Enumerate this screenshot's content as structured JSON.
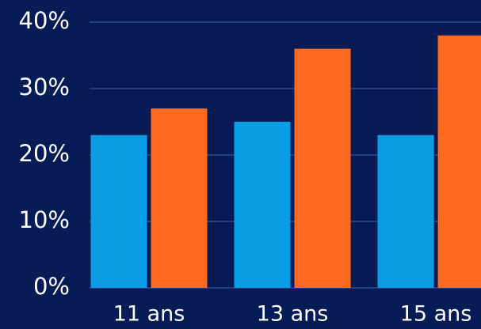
{
  "chart_data": {
    "type": "bar",
    "categories": [
      "11 ans",
      "13 ans",
      "15 ans"
    ],
    "series": [
      {
        "color": "#0b9de3",
        "values": [
          23,
          25,
          23
        ]
      },
      {
        "color": "#ff6a21",
        "values": [
          27,
          36,
          38
        ]
      }
    ],
    "ylim": [
      0,
      40
    ],
    "yticks": [
      {
        "value": 0,
        "label": "0%"
      },
      {
        "value": 10,
        "label": "10%"
      },
      {
        "value": 20,
        "label": "20%"
      },
      {
        "value": 30,
        "label": "30%"
      },
      {
        "value": 40,
        "label": "40%"
      }
    ],
    "grid": true
  }
}
